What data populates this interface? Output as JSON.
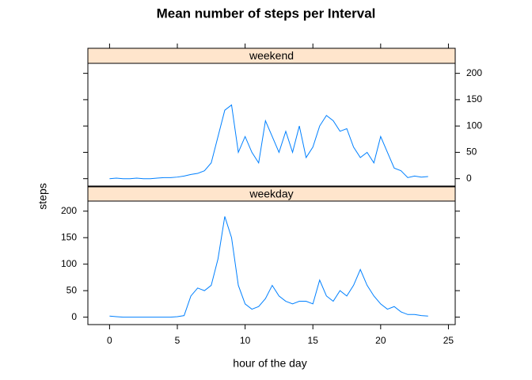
{
  "chart_data": {
    "type": "line",
    "title": "Mean number of steps per Interval",
    "xlabel": "hour of the day",
    "ylabel": "steps",
    "x": [
      0,
      0.5,
      1,
      1.5,
      2,
      2.5,
      3,
      3.5,
      4,
      4.5,
      5,
      5.5,
      6,
      6.5,
      7,
      7.5,
      8,
      8.5,
      9,
      9.5,
      10,
      10.5,
      11,
      11.5,
      12,
      12.5,
      13,
      13.5,
      14,
      14.5,
      15,
      15.5,
      16,
      16.5,
      17,
      17.5,
      18,
      18.5,
      19,
      19.5,
      20,
      20.5,
      21,
      21.5,
      22,
      22.5,
      23,
      23.5
    ],
    "series": [
      {
        "name": "weekend",
        "color": "#0080ff",
        "values": [
          0,
          1,
          0,
          0,
          1,
          0,
          0,
          1,
          2,
          2,
          3,
          5,
          8,
          10,
          15,
          30,
          80,
          130,
          140,
          50,
          80,
          50,
          30,
          110,
          80,
          50,
          90,
          50,
          100,
          40,
          60,
          100,
          120,
          110,
          90,
          95,
          60,
          40,
          50,
          30,
          80,
          50,
          20,
          15,
          2,
          5,
          3,
          4
        ]
      },
      {
        "name": "weekday",
        "color": "#0080ff",
        "values": [
          2,
          1,
          0,
          0,
          0,
          0,
          0,
          0,
          0,
          0,
          1,
          3,
          40,
          55,
          50,
          60,
          110,
          190,
          150,
          60,
          25,
          15,
          20,
          35,
          60,
          40,
          30,
          25,
          30,
          30,
          25,
          70,
          40,
          30,
          50,
          40,
          60,
          90,
          60,
          40,
          25,
          15,
          20,
          10,
          5,
          5,
          3,
          2
        ]
      }
    ],
    "xlim": [
      -1.6,
      25.5
    ],
    "xticks": [
      0,
      5,
      10,
      15,
      20,
      25
    ],
    "ylim": [
      -14,
      219
    ],
    "yticks": [
      0,
      50,
      100,
      150,
      200
    ]
  }
}
